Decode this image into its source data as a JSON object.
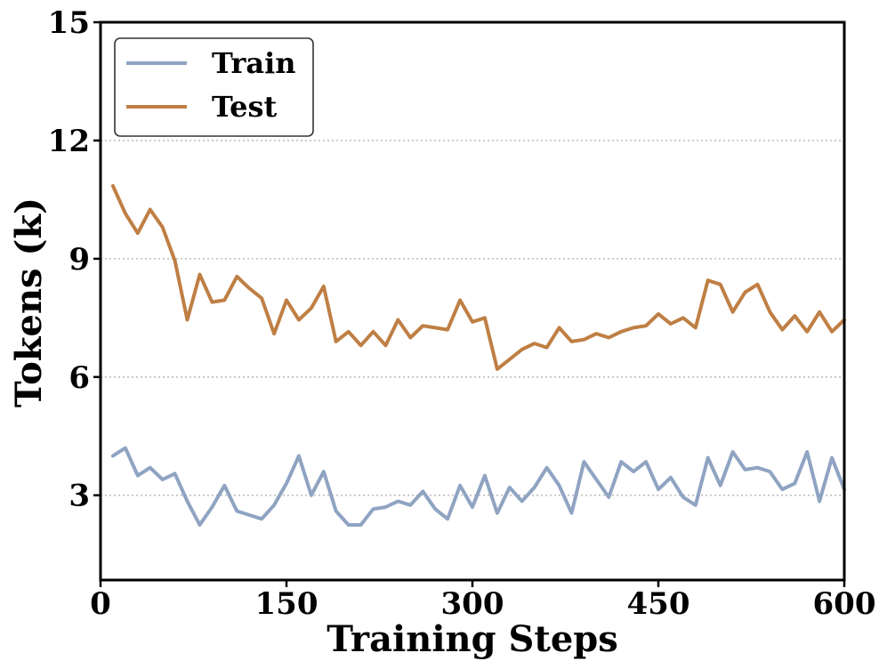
{
  "chart_data": {
    "type": "line",
    "xlabel": "Training Steps",
    "ylabel": "Tokens (k)",
    "xlim": [
      0,
      600
    ],
    "ylim": [
      0.85,
      15
    ],
    "xticks": [
      0,
      150,
      300,
      450,
      600
    ],
    "yticks": [
      3,
      6,
      9,
      12,
      15
    ],
    "xtick_labels": [
      "0",
      "150",
      "300",
      "450",
      "600"
    ],
    "ytick_labels": [
      "3",
      "6",
      "9",
      "12",
      "15"
    ],
    "grid": "horizontal dotted",
    "legend": "top-left",
    "series": [
      {
        "name": "Train",
        "color": "#8fa3c2",
        "x": [
          10,
          20,
          30,
          40,
          50,
          60,
          70,
          80,
          90,
          100,
          110,
          120,
          130,
          140,
          150,
          160,
          170,
          180,
          190,
          200,
          210,
          220,
          230,
          240,
          250,
          260,
          270,
          280,
          290,
          300,
          310,
          320,
          330,
          340,
          350,
          360,
          370,
          380,
          390,
          400,
          410,
          420,
          430,
          440,
          450,
          460,
          470,
          480,
          490,
          500,
          510,
          520,
          530,
          540,
          550,
          560,
          570,
          580,
          590,
          600
        ],
        "values": [
          4.0,
          4.2,
          3.5,
          3.7,
          3.4,
          3.55,
          2.85,
          2.25,
          2.7,
          3.25,
          2.6,
          2.5,
          2.4,
          2.75,
          3.3,
          4.0,
          3.0,
          3.6,
          2.6,
          2.25,
          2.25,
          2.65,
          2.7,
          2.85,
          2.75,
          3.1,
          2.65,
          2.4,
          3.25,
          2.7,
          3.5,
          2.55,
          3.2,
          2.85,
          3.2,
          3.7,
          3.25,
          2.55,
          3.85,
          3.4,
          2.95,
          3.85,
          3.6,
          3.85,
          3.15,
          3.45,
          2.95,
          2.75,
          3.95,
          3.25,
          4.1,
          3.65,
          3.7,
          3.6,
          3.15,
          3.3,
          4.1,
          2.85,
          3.95,
          3.15
        ]
      },
      {
        "name": "Test",
        "color": "#bf7f44",
        "x": [
          10,
          20,
          30,
          40,
          50,
          60,
          70,
          80,
          90,
          100,
          110,
          120,
          130,
          140,
          150,
          160,
          170,
          180,
          190,
          200,
          210,
          220,
          230,
          240,
          250,
          260,
          270,
          280,
          290,
          300,
          310,
          320,
          330,
          340,
          350,
          360,
          370,
          380,
          390,
          400,
          410,
          420,
          430,
          440,
          450,
          460,
          470,
          480,
          490,
          500,
          510,
          520,
          530,
          540,
          550,
          560,
          570,
          580,
          590,
          600
        ],
        "values": [
          10.85,
          10.15,
          9.65,
          10.25,
          9.8,
          8.95,
          7.45,
          8.6,
          7.9,
          7.95,
          8.55,
          8.25,
          8.0,
          7.1,
          7.95,
          7.45,
          7.75,
          8.3,
          6.9,
          7.15,
          6.8,
          7.15,
          6.8,
          7.45,
          7.0,
          7.3,
          7.25,
          7.2,
          7.95,
          7.4,
          7.5,
          6.2,
          6.45,
          6.7,
          6.85,
          6.75,
          7.25,
          6.9,
          6.95,
          7.1,
          7.0,
          7.15,
          7.25,
          7.3,
          7.6,
          7.35,
          7.5,
          7.25,
          8.45,
          8.35,
          7.65,
          8.15,
          8.35,
          7.65,
          7.2,
          7.55,
          7.15,
          7.65,
          7.15,
          7.45
        ]
      }
    ]
  }
}
